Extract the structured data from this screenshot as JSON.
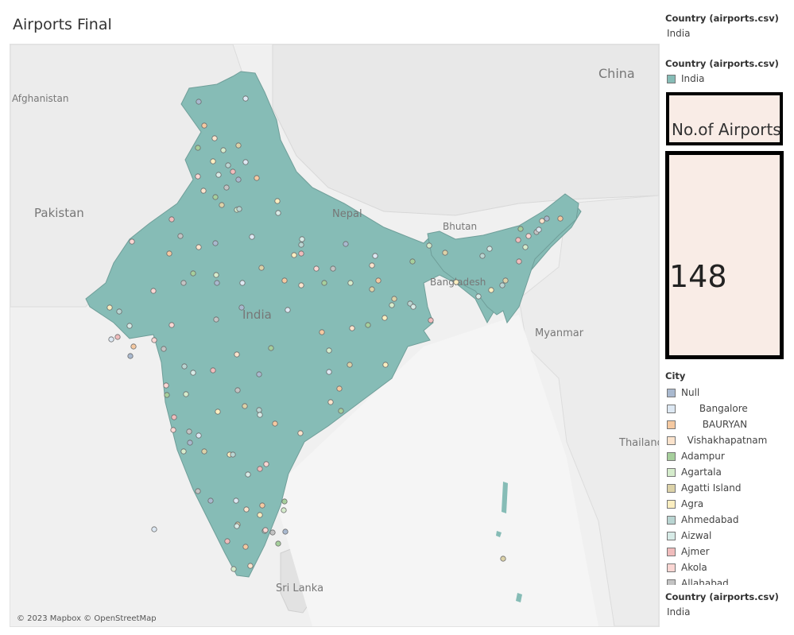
{
  "title": "Airports Final",
  "filters": {
    "top": {
      "header": "Country (airports.csv)",
      "value": "India"
    },
    "color_legend": {
      "header": "Country (airports.csv)",
      "item": "India",
      "color": "#86bcb6"
    },
    "bottom": {
      "header": "Country (airports.csv)",
      "value": "India"
    }
  },
  "kpi": {
    "label": "No.of Airports",
    "value": "148"
  },
  "city_legend": {
    "header": "City",
    "items": [
      {
        "label": "Null",
        "color": "#a9b9cf"
      },
      {
        "label": "      Bangalore",
        "color": "#dde8f3"
      },
      {
        "label": "       BAURYAN",
        "color": "#f5c9a1"
      },
      {
        "label": "  Vishakhapatnam",
        "color": "#fbe3cc"
      },
      {
        "label": "Adampur",
        "color": "#a6cf9c"
      },
      {
        "label": "Agartala",
        "color": "#d5eccc"
      },
      {
        "label": "Agatti Island",
        "color": "#dcd2a8"
      },
      {
        "label": "Agra",
        "color": "#fbeec0"
      },
      {
        "label": "Ahmedabad",
        "color": "#b9d5d2"
      },
      {
        "label": "Aizwal",
        "color": "#d7ebe7"
      },
      {
        "label": "Ajmer",
        "color": "#f0bcbc"
      },
      {
        "label": "Akola",
        "color": "#fad6d3"
      },
      {
        "label": "Allahabad",
        "color": "#c3c3c3"
      }
    ]
  },
  "map": {
    "credit": "© 2023 Mapbox © OpenStreetMap",
    "labels": [
      "China",
      "Afghanistan",
      "Pakistan",
      "Nepal",
      "Bhutan",
      "Bangladesh",
      "India",
      "Myanmar",
      "Thailand",
      "Sri Lanka"
    ]
  }
}
